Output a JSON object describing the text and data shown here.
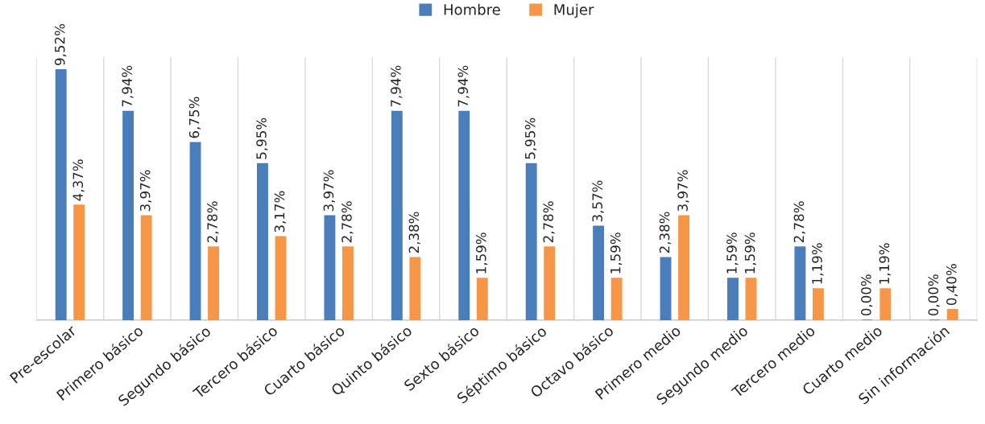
{
  "chart_data": {
    "type": "bar",
    "categories": [
      "Pre-escolar",
      "Primero básico",
      "Segundo básico",
      "Tercero básico",
      "Cuarto básico",
      "Quinto básico",
      "Sexto básico",
      "Séptimo básico",
      "Octavo básico",
      "Primero medio",
      "Segundo medio",
      "Tercero medio",
      "Cuarto medio",
      "Sin información"
    ],
    "series": [
      {
        "name": "Hombre",
        "color": "#4a7ebb",
        "values": [
          9.52,
          7.94,
          6.75,
          5.95,
          3.97,
          7.94,
          7.94,
          5.95,
          3.57,
          2.38,
          1.59,
          2.78,
          0,
          0
        ],
        "value_labels": [
          "9,52%",
          "7,94%",
          "6,75%",
          "5,95%",
          "3,97%",
          "7,94%",
          "7,94%",
          "5,95%",
          "3,57%",
          "2,38%",
          "1,59%",
          "2,78%",
          "0,00%",
          "0,00%"
        ]
      },
      {
        "name": "Mujer",
        "color": "#f79646",
        "values": [
          4.37,
          3.97,
          2.78,
          3.17,
          2.78,
          2.38,
          1.59,
          2.78,
          1.59,
          3.97,
          1.59,
          1.19,
          1.19,
          0.4
        ],
        "value_labels": [
          "4,37%",
          "3,97%",
          "2,78%",
          "3,17%",
          "2,78%",
          "2,38%",
          "1,59%",
          "2,78%",
          "1,59%",
          "3,97%",
          "1,59%",
          "1,19%",
          "1,19%",
          "0,40%"
        ]
      }
    ],
    "grid": "x",
    "legend": "top",
    "tick_labels": "x"
  }
}
